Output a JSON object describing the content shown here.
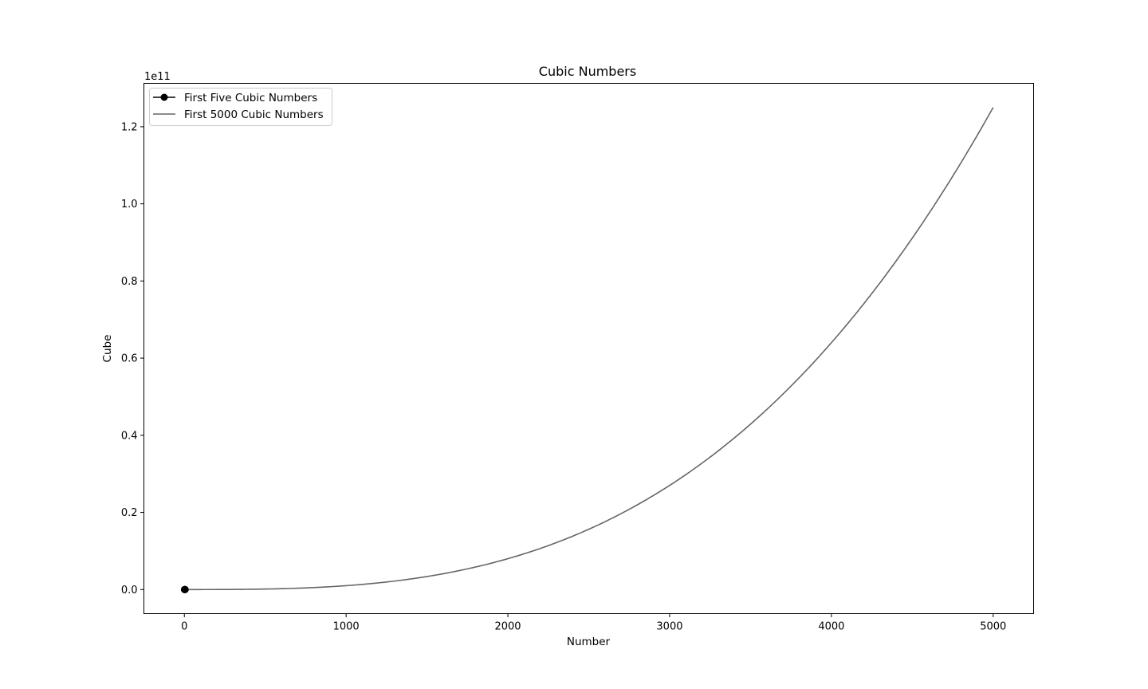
{
  "chart_data": {
    "type": "line",
    "title": "Cubic Numbers",
    "xlabel": "Number",
    "ylabel": "Cube",
    "offset_text": "1e11",
    "xlim": [
      -250,
      5250
    ],
    "ylim": [
      -6250000000,
      131250000000
    ],
    "y_scale": 100000000000,
    "x_ticks": [
      0,
      1000,
      2000,
      3000,
      4000,
      5000
    ],
    "x_tick_labels": [
      "0",
      "1000",
      "2000",
      "3000",
      "4000",
      "5000"
    ],
    "y_ticks": [
      0,
      0.2,
      0.4,
      0.6,
      0.8,
      1.0,
      1.2
    ],
    "y_tick_labels": [
      "0.0",
      "0.2",
      "0.4",
      "0.6",
      "0.8",
      "1.0",
      "1.2"
    ],
    "grid": false,
    "legend_position": "top-left",
    "series": [
      {
        "name": "First Five Cubic Numbers",
        "style": "line-with-markers",
        "color": "#000000",
        "x": [
          1,
          2,
          3,
          4,
          5
        ],
        "y": [
          1,
          8,
          27,
          64,
          125
        ]
      },
      {
        "name": "First 5000 Cubic Numbers",
        "style": "line",
        "color": "#666666",
        "x_range": [
          1,
          5000
        ],
        "formula": "y = x^3"
      }
    ]
  }
}
